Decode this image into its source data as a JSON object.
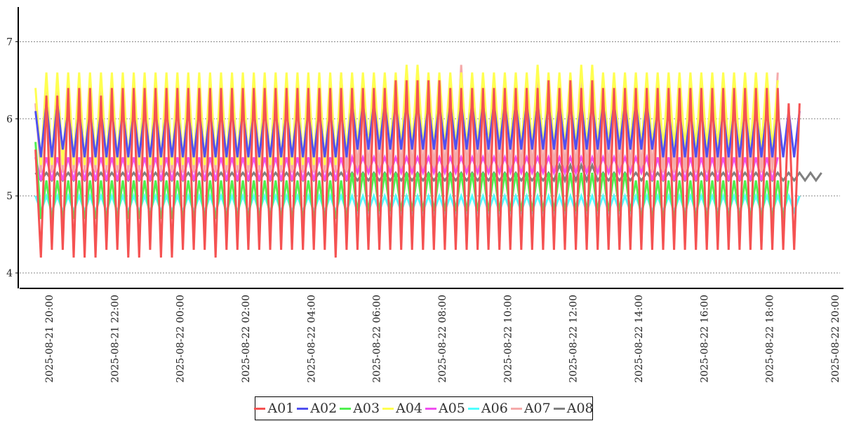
{
  "chart_data": {
    "type": "line",
    "title": "",
    "xlabel": "",
    "ylabel": "",
    "ylim": [
      3.8,
      7.45
    ],
    "yticks": [
      "4",
      "5",
      "6",
      "7"
    ],
    "xlim": [
      "2025-08-21 19:30",
      "2025-08-22 20:05"
    ],
    "xticks": [
      "2025-08-21 20:00",
      "2025-08-21 22:00",
      "2025-08-22 00:00",
      "2025-08-22 02:00",
      "2025-08-22 04:00",
      "2025-08-22 06:00",
      "2025-08-22 08:00",
      "2025-08-22 10:00",
      "2025-08-22 12:00",
      "2025-08-22 14:00",
      "2025-08-22 16:00",
      "2025-08-22 18:00",
      "2025-08-22 20:00"
    ],
    "grid": "horizontal dashed",
    "legend": "bottom-center",
    "x_start": "2025-08-21 19:35",
    "x_step_minutes": 10,
    "series": [
      {
        "name": "A01",
        "color": "#f55252",
        "values": [
          5.6,
          4.2,
          6.3,
          4.3,
          6.3,
          4.3,
          6.4,
          4.2,
          6.4,
          4.2,
          6.4,
          4.2,
          6.3,
          4.3,
          6.4,
          4.3,
          6.4,
          4.2,
          6.4,
          4.2,
          6.4,
          4.3,
          6.4,
          4.2,
          6.4,
          4.2,
          6.4,
          4.3,
          6.4,
          4.3,
          6.4,
          4.3,
          6.4,
          4.2,
          6.4,
          4.3,
          6.4,
          4.3,
          6.4,
          4.3,
          6.4,
          4.3,
          6.4,
          4.3,
          6.4,
          4.3,
          6.4,
          4.3,
          6.4,
          4.3,
          6.4,
          4.3,
          6.4,
          4.3,
          6.4,
          4.2,
          6.4,
          4.3,
          6.4,
          4.3,
          6.4,
          4.3,
          6.4,
          4.3,
          6.4,
          4.3,
          6.5,
          4.3,
          6.5,
          4.3,
          6.5,
          4.3,
          6.5,
          4.3,
          6.5,
          4.3,
          6.4,
          4.3,
          6.4,
          4.3,
          6.4,
          4.3,
          6.4,
          4.3,
          6.4,
          4.3,
          6.4,
          4.3,
          6.4,
          4.3,
          6.4,
          4.3,
          6.4,
          4.3,
          6.5,
          4.3,
          6.4,
          4.3,
          6.5,
          4.3,
          6.4,
          4.3,
          6.5,
          4.3,
          6.4,
          4.3,
          6.4,
          4.3,
          6.4,
          4.3,
          6.4,
          4.3,
          6.4,
          4.3,
          6.4,
          4.3,
          6.4,
          4.3,
          6.4,
          4.3,
          6.4,
          4.3,
          6.4,
          4.3,
          6.4,
          4.3,
          6.4,
          4.3,
          6.4,
          4.3,
          6.4,
          4.3,
          6.4,
          4.3,
          6.4,
          4.3,
          6.4,
          4.3,
          6.2,
          4.3,
          6.2
        ]
      },
      {
        "name": "A02",
        "color": "#5050f0",
        "values": [
          6.1,
          5.5,
          6.2,
          5.5,
          6.2,
          5.6,
          6.1,
          5.5,
          6.1,
          5.5,
          6.1,
          5.5,
          6.1,
          5.5,
          6.1,
          5.5,
          6.1,
          5.5,
          6.1,
          5.5,
          6.1,
          5.5,
          6.1,
          5.5,
          6.1,
          5.5,
          6.1,
          5.5,
          6.1,
          5.5,
          6.1,
          5.5,
          6.1,
          5.5,
          6.1,
          5.5,
          6.1,
          5.5,
          6.1,
          5.5,
          6.1,
          5.5,
          6.1,
          5.5,
          6.1,
          5.5,
          6.1,
          5.5,
          6.1,
          5.5,
          6.1,
          5.5,
          6.1,
          5.5,
          6.1,
          5.5,
          6.1,
          5.5,
          6.2,
          5.6,
          6.2,
          5.6,
          6.2,
          5.6,
          6.2,
          5.6,
          6.2,
          5.6,
          6.2,
          5.6,
          6.2,
          5.6,
          6.2,
          5.6,
          6.2,
          5.6,
          6.2,
          5.6,
          6.2,
          5.6,
          6.2,
          5.6,
          6.2,
          5.6,
          6.2,
          5.6,
          6.2,
          5.6,
          6.2,
          5.6,
          6.2,
          5.6,
          6.2,
          5.6,
          6.2,
          5.6,
          6.2,
          5.6,
          6.2,
          5.6,
          6.2,
          5.6,
          6.2,
          5.6,
          6.2,
          5.6,
          6.2,
          5.6,
          6.2,
          5.6,
          6.2,
          5.6,
          6.2,
          5.6,
          6.1,
          5.5,
          6.1,
          5.5,
          6.1,
          5.5,
          6.1,
          5.5,
          6.1,
          5.5,
          6.1,
          5.5,
          6.1,
          5.5,
          6.1,
          5.5,
          6.1,
          5.5,
          6.1,
          5.5,
          6.1,
          5.5,
          6.1,
          5.5,
          6.1,
          5.5,
          6.1
        ]
      },
      {
        "name": "A03",
        "color": "#50f050",
        "values": [
          5.7,
          4.7,
          5.2,
          4.7,
          5.2,
          4.7,
          5.2,
          4.7,
          5.2,
          4.7,
          5.2,
          4.7,
          5.2,
          4.7,
          5.2,
          4.7,
          5.2,
          4.7,
          5.2,
          4.7,
          5.2,
          4.7,
          5.2,
          4.7,
          5.2,
          4.7,
          5.2,
          4.7,
          5.2,
          4.7,
          5.2,
          4.7,
          5.2,
          4.7,
          5.2,
          4.7,
          5.2,
          4.7,
          5.2,
          4.7,
          5.2,
          4.7,
          5.2,
          4.7,
          5.2,
          4.7,
          5.2,
          4.7,
          5.2,
          4.7,
          5.2,
          4.7,
          5.2,
          4.7,
          5.2,
          4.7,
          5.2,
          4.7,
          5.3,
          4.8,
          5.3,
          4.8,
          5.3,
          4.8,
          5.3,
          4.8,
          5.3,
          4.8,
          5.3,
          4.8,
          5.3,
          4.8,
          5.3,
          4.8,
          5.3,
          4.8,
          5.3,
          4.8,
          5.3,
          4.8,
          5.3,
          4.8,
          5.3,
          4.8,
          5.3,
          4.8,
          5.3,
          4.8,
          5.3,
          4.8,
          5.3,
          4.8,
          5.3,
          4.8,
          5.3,
          4.8,
          5.3,
          4.8,
          5.3,
          4.8,
          5.3,
          4.8,
          5.3,
          4.8,
          5.3,
          4.8,
          5.3,
          4.8,
          5.3,
          4.8,
          5.2,
          4.7,
          5.2,
          4.7,
          5.2,
          4.7,
          5.2,
          4.7,
          5.2,
          4.7,
          5.2,
          4.7,
          5.2,
          4.7,
          5.2,
          4.7,
          5.2,
          4.7,
          5.2,
          4.7,
          5.2,
          4.7,
          5.2,
          4.7,
          5.2,
          4.7,
          5.2,
          4.7,
          5.2
        ]
      },
      {
        "name": "A04",
        "color": "#ffff50",
        "values": [
          6.4,
          5.4,
          6.6,
          5.4,
          6.6,
          5.4,
          6.6,
          5.4,
          6.6,
          5.4,
          6.6,
          5.4,
          6.6,
          5.4,
          6.6,
          5.4,
          6.6,
          5.4,
          6.6,
          5.4,
          6.6,
          5.4,
          6.6,
          5.4,
          6.6,
          5.4,
          6.6,
          5.4,
          6.6,
          5.4,
          6.6,
          5.4,
          6.6,
          5.4,
          6.6,
          5.4,
          6.6,
          5.4,
          6.6,
          5.4,
          6.6,
          5.4,
          6.6,
          5.4,
          6.6,
          5.4,
          6.6,
          5.4,
          6.6,
          5.4,
          6.6,
          5.4,
          6.6,
          5.4,
          6.6,
          5.4,
          6.6,
          5.5,
          6.6,
          5.6,
          6.6,
          5.6,
          6.6,
          5.6,
          6.6,
          5.6,
          6.6,
          5.6,
          6.7,
          5.6,
          6.7,
          5.6,
          6.6,
          5.6,
          6.6,
          5.6,
          6.6,
          5.6,
          6.6,
          5.6,
          6.6,
          5.6,
          6.6,
          5.6,
          6.6,
          5.6,
          6.6,
          5.6,
          6.6,
          5.6,
          6.6,
          5.6,
          6.7,
          5.6,
          6.6,
          5.6,
          6.6,
          5.6,
          6.6,
          5.6,
          6.7,
          5.6,
          6.7,
          5.6,
          6.6,
          5.6,
          6.6,
          5.6,
          6.6,
          5.6,
          6.6,
          5.6,
          6.6,
          5.6,
          6.6,
          5.6,
          6.6,
          5.6,
          6.6,
          5.6,
          6.6,
          5.6,
          6.6,
          5.6,
          6.6,
          5.6,
          6.6,
          5.6,
          6.6,
          5.6,
          6.6,
          5.6,
          6.6,
          5.6,
          6.6,
          5.6,
          6.5
        ]
      },
      {
        "name": "A05",
        "color": "#f050f0",
        "values": [
          5.5,
          5.2,
          5.5,
          5.2,
          5.5,
          5.2,
          5.5,
          5.2,
          5.5,
          5.2,
          5.5,
          5.2,
          5.5,
          5.2,
          5.5,
          5.2,
          5.5,
          5.2,
          5.5,
          5.2,
          5.5,
          5.2,
          5.5,
          5.2,
          5.5,
          5.2,
          5.5,
          5.2,
          5.5,
          5.2,
          5.5,
          5.2,
          5.5,
          5.2,
          5.5,
          5.2,
          5.5,
          5.2,
          5.5,
          5.2,
          5.5,
          5.2,
          5.5,
          5.2,
          5.5,
          5.2,
          5.5,
          5.2,
          5.5,
          5.2,
          5.5,
          5.2,
          5.5,
          5.2,
          5.5,
          5.2,
          5.5,
          5.2,
          5.5,
          5.3,
          5.5,
          5.3,
          5.5,
          5.3,
          5.5,
          5.3,
          5.5,
          5.3,
          5.5,
          5.3,
          5.5,
          5.3,
          5.5,
          5.3,
          5.5,
          5.3,
          5.5,
          5.3,
          5.5,
          5.3,
          5.5,
          5.3,
          5.5,
          5.3,
          5.5,
          5.3,
          5.5,
          5.3,
          5.5,
          5.3,
          5.5,
          5.3,
          5.5,
          5.3,
          5.5,
          5.3,
          5.5,
          5.3,
          5.5,
          5.3,
          5.5,
          5.3,
          5.5,
          5.3,
          5.5,
          5.3,
          5.5,
          5.3,
          5.5,
          5.3,
          5.5,
          5.3,
          5.5,
          5.2,
          5.5,
          5.2,
          5.5,
          5.2,
          5.5,
          5.2,
          5.5,
          5.2,
          5.5,
          5.2,
          5.5,
          5.2,
          5.5,
          5.2,
          5.5,
          5.2,
          5.5,
          5.2,
          5.5,
          5.2,
          5.5,
          5.2,
          5.5
        ]
      },
      {
        "name": "A06",
        "color": "#50ffff",
        "values": [
          5.0,
          4.8,
          5.0,
          4.8,
          5.0,
          4.8,
          5.0,
          4.8,
          5.0,
          4.8,
          5.0,
          4.8,
          5.0,
          4.8,
          5.0,
          4.8,
          5.0,
          4.8,
          5.0,
          4.8,
          5.0,
          4.8,
          5.0,
          4.8,
          5.0,
          4.8,
          5.0,
          4.8,
          5.0,
          4.8,
          5.0,
          4.8,
          5.0,
          4.8,
          5.0,
          4.8,
          5.0,
          4.8,
          5.0,
          4.8,
          5.0,
          4.8,
          5.0,
          4.8,
          5.0,
          4.8,
          5.0,
          4.8,
          5.0,
          4.8,
          5.0,
          4.8,
          5.0,
          4.8,
          5.0,
          4.8,
          5.0,
          4.8,
          5.0,
          4.8,
          5.0,
          4.8,
          5.0,
          4.8,
          5.0,
          4.8,
          5.0,
          4.8,
          5.0,
          4.8,
          5.0,
          4.8,
          5.0,
          4.8,
          5.0,
          4.8,
          5.0,
          4.8,
          5.0,
          4.8,
          5.0,
          4.8,
          5.0,
          4.8,
          5.0,
          4.8,
          5.0,
          4.8,
          5.0,
          4.8,
          5.0,
          4.8,
          5.0,
          4.8,
          5.0,
          4.8,
          5.0,
          4.8,
          5.0,
          4.8,
          5.0,
          4.8,
          5.0,
          4.8,
          5.0,
          4.8,
          5.0,
          4.8,
          5.0,
          4.8,
          5.0,
          4.8,
          5.0,
          4.8,
          5.0,
          4.8,
          5.0,
          4.8,
          5.0,
          4.8,
          5.0,
          4.8,
          5.0,
          4.8,
          5.0,
          4.8,
          5.0,
          4.8,
          5.0,
          4.8,
          5.0,
          4.8,
          5.0,
          4.8,
          5.0,
          4.8,
          5.0,
          4.8,
          5.0,
          4.8,
          5.0
        ]
      },
      {
        "name": "A07",
        "color": "#f5aaaa",
        "values": [
          6.2,
          5.3,
          6.5,
          5.3,
          6.5,
          5.3,
          6.5,
          5.3,
          6.5,
          5.3,
          6.5,
          5.3,
          6.5,
          5.3,
          6.5,
          5.3,
          6.5,
          5.3,
          6.5,
          5.3,
          6.5,
          5.3,
          6.5,
          5.3,
          6.5,
          5.3,
          6.5,
          5.3,
          6.5,
          5.3,
          6.5,
          5.3,
          6.5,
          5.3,
          6.5,
          5.3,
          6.5,
          5.3,
          6.5,
          5.3,
          6.5,
          5.3,
          6.5,
          5.3,
          6.5,
          5.3,
          6.5,
          5.3,
          6.5,
          5.3,
          6.5,
          5.3,
          6.5,
          5.3,
          6.5,
          5.3,
          6.6,
          5.3,
          6.5,
          5.3,
          6.5,
          5.3,
          6.5,
          5.3,
          6.5,
          5.3,
          6.5,
          5.3,
          6.5,
          5.3,
          6.5,
          5.3,
          6.5,
          5.3,
          6.5,
          5.3,
          6.5,
          5.3,
          6.7,
          5.3,
          6.5,
          5.3,
          6.5,
          5.3,
          6.5,
          5.3,
          6.5,
          5.3,
          6.5,
          5.3,
          6.5,
          5.3,
          6.5,
          5.3,
          6.5,
          5.3,
          6.5,
          5.3,
          6.5,
          5.3,
          6.5,
          5.3,
          6.5,
          5.3,
          6.5,
          5.3,
          6.5,
          5.3,
          6.5,
          5.3,
          6.5,
          5.3,
          6.5,
          5.3,
          6.5,
          5.3,
          6.5,
          5.3,
          6.5,
          5.3,
          6.5,
          5.3,
          6.5,
          5.3,
          6.5,
          5.3,
          6.5,
          5.3,
          6.5,
          5.3,
          6.5,
          5.3,
          6.5,
          5.3,
          6.5,
          5.3,
          6.6
        ]
      },
      {
        "name": "A08",
        "color": "#808080",
        "values": [
          5.3,
          5.2,
          5.3,
          5.2,
          5.3,
          5.2,
          5.3,
          5.2,
          5.3,
          5.2,
          5.3,
          5.2,
          5.3,
          5.2,
          5.3,
          5.2,
          5.3,
          5.2,
          5.3,
          5.2,
          5.3,
          5.2,
          5.3,
          5.2,
          5.3,
          5.2,
          5.3,
          5.2,
          5.3,
          5.2,
          5.3,
          5.2,
          5.3,
          5.2,
          5.3,
          5.2,
          5.3,
          5.2,
          5.3,
          5.2,
          5.3,
          5.2,
          5.3,
          5.2,
          5.3,
          5.2,
          5.3,
          5.2,
          5.3,
          5.2,
          5.3,
          5.2,
          5.3,
          5.2,
          5.3,
          5.2,
          5.3,
          5.2,
          5.3,
          5.2,
          5.3,
          5.2,
          5.3,
          5.2,
          5.3,
          5.2,
          5.3,
          5.2,
          5.3,
          5.2,
          5.3,
          5.2,
          5.3,
          5.2,
          5.3,
          5.2,
          5.3,
          5.2,
          5.3,
          5.2,
          5.3,
          5.2,
          5.3,
          5.2,
          5.3,
          5.2,
          5.3,
          5.2,
          5.3,
          5.2,
          5.3,
          5.2,
          5.3,
          5.2,
          5.3,
          5.2,
          5.4,
          5.2,
          5.4,
          5.2,
          5.4,
          5.2,
          5.4,
          5.2,
          5.3,
          5.2,
          5.3,
          5.2,
          5.3,
          5.2,
          5.3,
          5.2,
          5.3,
          5.2,
          5.3,
          5.2,
          5.3,
          5.2,
          5.3,
          5.2,
          5.3,
          5.2,
          5.3,
          5.2,
          5.3,
          5.2,
          5.3,
          5.2,
          5.3,
          5.2,
          5.3,
          5.2,
          5.3,
          5.2,
          5.3,
          5.2,
          5.3,
          5.2,
          5.3,
          5.2,
          5.3,
          5.2,
          5.3,
          5.2,
          5.3
        ]
      }
    ]
  }
}
